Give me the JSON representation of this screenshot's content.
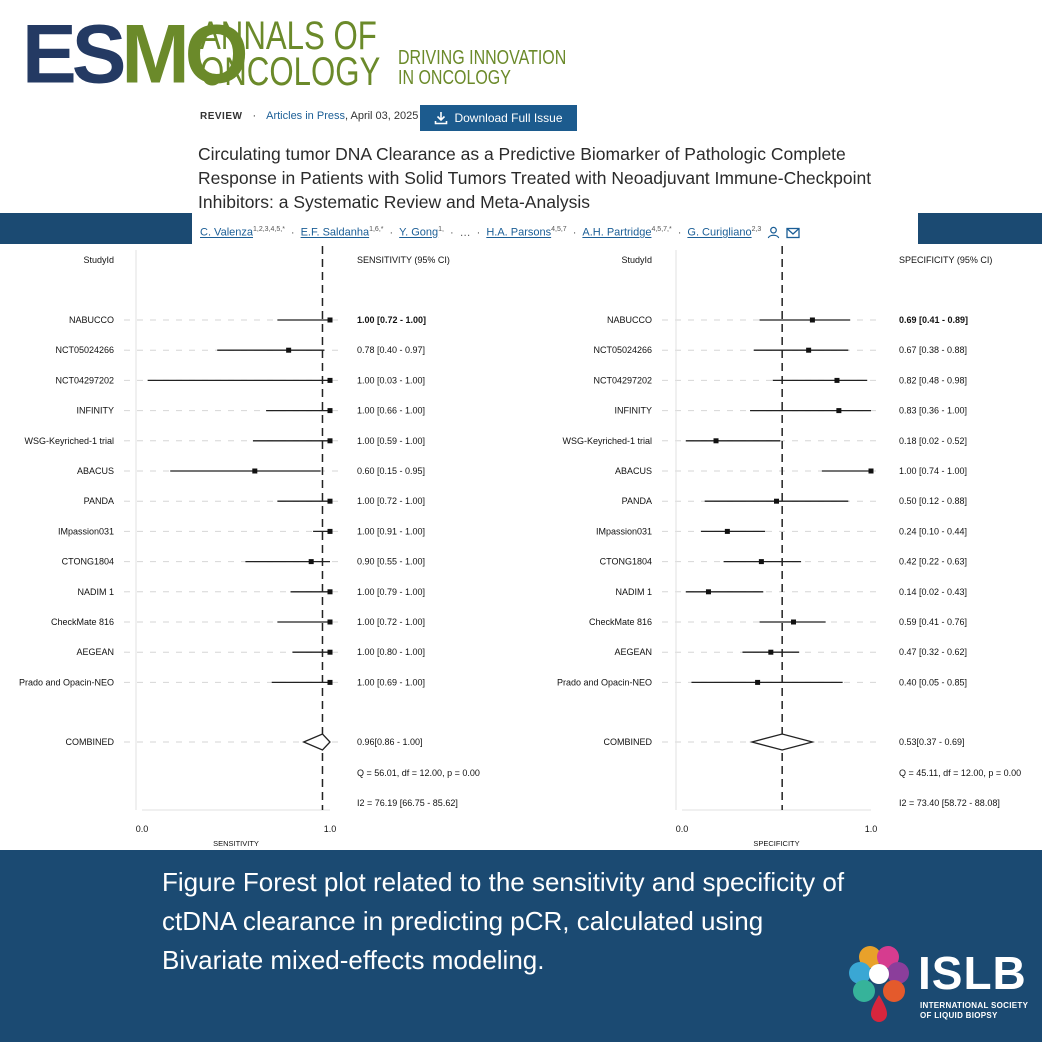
{
  "header": {
    "logo_esmo": "ESMO",
    "logo_annals_line1": "ANNALS OF",
    "logo_annals_line2": "ONCOLOGY",
    "tagline_line1": "DRIVING INNOVATION",
    "tagline_line2": "IN ONCOLOGY",
    "review_label": "REVIEW",
    "dot": "·",
    "articles_in_press": "Articles in Press",
    "date": ", April 03, 2025",
    "download_label": "Download Full Issue",
    "title": "Circulating tumor DNA Clearance as a Predictive Biomarker of Pathologic Complete Response in Patients with Solid Tumors Treated with Neoadjuvant Immune-Checkpoint Inhibitors: a Systematic Review and Meta-Analysis",
    "authors": [
      {
        "name": "C. Valenza",
        "sup": "1,2,3,4,5,*"
      },
      {
        "name": "E.F. Saldanha",
        "sup": "1,6,*"
      },
      {
        "name": "Y. Gong",
        "sup": "1,"
      },
      {
        "name": "…",
        "sup": ""
      },
      {
        "name": "H.A. Parsons",
        "sup": "4,5,7"
      },
      {
        "name": "A.H. Partridge",
        "sup": "4,5,7,*"
      },
      {
        "name": "G. Curigliano",
        "sup": "2,3"
      }
    ],
    "icons": [
      "person-icon",
      "mail-icon",
      "download-icon"
    ]
  },
  "colors": {
    "navy": "#1b4a72",
    "esmo_dark": "#243a63",
    "esmo_green": "#6b8a2a",
    "link": "#1b5e96"
  },
  "chart_data": [
    {
      "type": "forest",
      "id_header": "StudyId",
      "value_header": "SENSITIVITY (95% CI)",
      "xlabel": "SENSITIVITY",
      "xlim": [
        0.0,
        1.0
      ],
      "xticks": [
        "0.0",
        "1.0"
      ],
      "pooled_ref": 0.96,
      "studies": [
        {
          "name": "NABUCCO",
          "est": 1.0,
          "lo": 0.72,
          "hi": 1.0,
          "label": "1.00 [0.72 - 1.00]",
          "bold": true
        },
        {
          "name": "NCT05024266",
          "est": 0.78,
          "lo": 0.4,
          "hi": 0.97,
          "label": "0.78 [0.40 - 0.97]"
        },
        {
          "name": "NCT04297202",
          "est": 1.0,
          "lo": 0.03,
          "hi": 1.0,
          "label": "1.00 [0.03 - 1.00]"
        },
        {
          "name": "INFINITY",
          "est": 1.0,
          "lo": 0.66,
          "hi": 1.0,
          "label": "1.00 [0.66 - 1.00]"
        },
        {
          "name": "WSG-Keyriched-1 trial",
          "est": 1.0,
          "lo": 0.59,
          "hi": 1.0,
          "label": "1.00 [0.59 - 1.00]"
        },
        {
          "name": "ABACUS",
          "est": 0.6,
          "lo": 0.15,
          "hi": 0.95,
          "label": "0.60 [0.15 - 0.95]"
        },
        {
          "name": "PANDA",
          "est": 1.0,
          "lo": 0.72,
          "hi": 1.0,
          "label": "1.00 [0.72 - 1.00]"
        },
        {
          "name": "IMpassion031",
          "est": 1.0,
          "lo": 0.91,
          "hi": 1.0,
          "label": "1.00 [0.91 - 1.00]"
        },
        {
          "name": "CTONG1804",
          "est": 0.9,
          "lo": 0.55,
          "hi": 1.0,
          "label": "0.90 [0.55 - 1.00]"
        },
        {
          "name": "NADIM 1",
          "est": 1.0,
          "lo": 0.79,
          "hi": 1.0,
          "label": "1.00 [0.79 - 1.00]"
        },
        {
          "name": "CheckMate 816",
          "est": 1.0,
          "lo": 0.72,
          "hi": 1.0,
          "label": "1.00 [0.72 - 1.00]"
        },
        {
          "name": "AEGEAN",
          "est": 1.0,
          "lo": 0.8,
          "hi": 1.0,
          "label": "1.00 [0.80 - 1.00]"
        },
        {
          "name": "Prado and Opacin-NEO",
          "est": 1.0,
          "lo": 0.69,
          "hi": 1.0,
          "label": "1.00 [0.69 - 1.00]"
        }
      ],
      "combined": {
        "name": "COMBINED",
        "est": 0.96,
        "lo": 0.86,
        "hi": 1.0,
        "label": "0.96[0.86 - 1.00]"
      },
      "stats": [
        "Q = 56.01, df = 12.00, p = 0.00",
        "I2 = 76.19 [66.75 - 85.62]"
      ]
    },
    {
      "type": "forest",
      "id_header": "StudyId",
      "value_header": "SPECIFICITY (95% CI)",
      "xlabel": "SPECIFICITY",
      "xlim": [
        0.0,
        1.0
      ],
      "xticks": [
        "0.0",
        "1.0"
      ],
      "pooled_ref": 0.53,
      "studies": [
        {
          "name": "NABUCCO",
          "est": 0.69,
          "lo": 0.41,
          "hi": 0.89,
          "label": "0.69 [0.41 - 0.89]",
          "bold": true
        },
        {
          "name": "NCT05024266",
          "est": 0.67,
          "lo": 0.38,
          "hi": 0.88,
          "label": "0.67 [0.38 - 0.88]"
        },
        {
          "name": "NCT04297202",
          "est": 0.82,
          "lo": 0.48,
          "hi": 0.98,
          "label": "0.82 [0.48 - 0.98]"
        },
        {
          "name": "INFINITY",
          "est": 0.83,
          "lo": 0.36,
          "hi": 1.0,
          "label": "0.83 [0.36 - 1.00]"
        },
        {
          "name": "WSG-Keyriched-1 trial",
          "est": 0.18,
          "lo": 0.02,
          "hi": 0.52,
          "label": "0.18 [0.02 - 0.52]"
        },
        {
          "name": "ABACUS",
          "est": 1.0,
          "lo": 0.74,
          "hi": 1.0,
          "label": "1.00 [0.74 - 1.00]"
        },
        {
          "name": "PANDA",
          "est": 0.5,
          "lo": 0.12,
          "hi": 0.88,
          "label": "0.50 [0.12 - 0.88]"
        },
        {
          "name": "IMpassion031",
          "est": 0.24,
          "lo": 0.1,
          "hi": 0.44,
          "label": "0.24 [0.10 - 0.44]"
        },
        {
          "name": "CTONG1804",
          "est": 0.42,
          "lo": 0.22,
          "hi": 0.63,
          "label": "0.42 [0.22 - 0.63]"
        },
        {
          "name": "NADIM 1",
          "est": 0.14,
          "lo": 0.02,
          "hi": 0.43,
          "label": "0.14 [0.02 - 0.43]"
        },
        {
          "name": "CheckMate 816",
          "est": 0.59,
          "lo": 0.41,
          "hi": 0.76,
          "label": "0.59 [0.41 - 0.76]"
        },
        {
          "name": "AEGEAN",
          "est": 0.47,
          "lo": 0.32,
          "hi": 0.62,
          "label": "0.47 [0.32 - 0.62]"
        },
        {
          "name": "Prado and Opacin-NEO",
          "est": 0.4,
          "lo": 0.05,
          "hi": 0.85,
          "label": "0.40 [0.05 - 0.85]"
        }
      ],
      "combined": {
        "name": "COMBINED",
        "est": 0.53,
        "lo": 0.37,
        "hi": 0.69,
        "label": "0.53[0.37 - 0.69]"
      },
      "stats": [
        "Q = 45.11, df = 12.00, p = 0.00",
        "I2 = 73.40 [58.72 - 88.08]"
      ]
    }
  ],
  "footer": {
    "caption": "Figure  Forest plot related to the sensitivity and specificity of ctDNA clearance in predicting pCR, calculated using Bivariate mixed-effects modeling.",
    "islb_word": "ISLB",
    "islb_sub_line1": "INTERNATIONAL SOCIETY",
    "islb_sub_line2": "OF LIQUID BIOPSY"
  }
}
